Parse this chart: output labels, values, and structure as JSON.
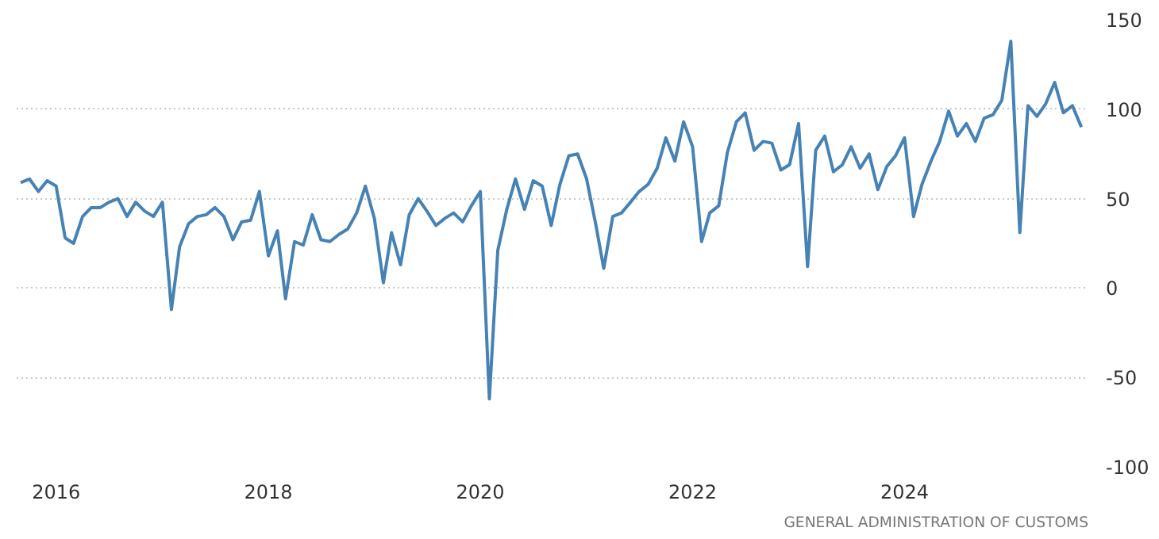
{
  "chart_data": {
    "type": "line",
    "x": [
      "2015-09",
      "2015-10",
      "2015-11",
      "2015-12",
      "2016-01",
      "2016-02",
      "2016-03",
      "2016-04",
      "2016-05",
      "2016-06",
      "2016-07",
      "2016-08",
      "2016-09",
      "2016-10",
      "2016-11",
      "2016-12",
      "2017-01",
      "2017-02",
      "2017-03",
      "2017-04",
      "2017-05",
      "2017-06",
      "2017-07",
      "2017-08",
      "2017-09",
      "2017-10",
      "2017-11",
      "2017-12",
      "2018-01",
      "2018-02",
      "2018-03",
      "2018-04",
      "2018-05",
      "2018-06",
      "2018-07",
      "2018-08",
      "2018-09",
      "2018-10",
      "2018-11",
      "2018-12",
      "2019-01",
      "2019-02",
      "2019-03",
      "2019-04",
      "2019-05",
      "2019-06",
      "2019-07",
      "2019-08",
      "2019-09",
      "2019-10",
      "2019-11",
      "2019-12",
      "2020-01",
      "2020-02",
      "2020-03",
      "2020-04",
      "2020-05",
      "2020-06",
      "2020-07",
      "2020-08",
      "2020-09",
      "2020-10",
      "2020-11",
      "2020-12",
      "2021-01",
      "2021-02",
      "2021-03",
      "2021-04",
      "2021-05",
      "2021-06",
      "2021-07",
      "2021-08",
      "2021-09",
      "2021-10",
      "2021-11",
      "2021-12",
      "2022-01",
      "2022-02",
      "2022-03",
      "2022-04",
      "2022-05",
      "2022-06",
      "2022-07",
      "2022-08",
      "2022-09",
      "2022-10",
      "2022-11",
      "2022-12",
      "2023-01",
      "2023-02",
      "2023-03",
      "2023-04",
      "2023-05",
      "2023-06",
      "2023-07",
      "2023-08",
      "2023-09",
      "2023-10",
      "2023-11",
      "2023-12",
      "2024-01",
      "2024-02",
      "2024-03",
      "2024-04",
      "2024-05",
      "2024-06",
      "2024-07",
      "2024-08",
      "2024-09",
      "2024-10",
      "2024-11",
      "2024-12",
      "2025-01",
      "2025-02",
      "2025-03",
      "2025-04",
      "2025-05",
      "2025-06",
      "2025-07",
      "2025-08",
      "2025-09"
    ],
    "series": [
      {
        "color": "#4682b4",
        "values": [
          59,
          61,
          54,
          60,
          57,
          28,
          25,
          40,
          45,
          45,
          48,
          50,
          40,
          48,
          43,
          40,
          48,
          -12,
          23,
          36,
          40,
          41,
          45,
          40,
          27,
          37,
          38,
          54,
          18,
          32,
          -6,
          26,
          24,
          41,
          27,
          26,
          30,
          33,
          42,
          57,
          39,
          3,
          31,
          13,
          41,
          50,
          43,
          35,
          39,
          42,
          37,
          46,
          54,
          -62,
          21,
          44,
          61,
          44,
          60,
          57,
          35,
          58,
          74,
          75,
          61,
          36,
          11,
          40,
          42,
          48,
          54,
          58,
          67,
          84,
          71,
          93,
          79,
          26,
          42,
          46,
          76,
          93,
          98,
          77,
          82,
          81,
          66,
          69,
          92,
          12,
          77,
          85,
          65,
          69,
          79,
          67,
          75,
          55,
          68,
          74,
          84,
          40,
          58,
          71,
          82,
          99,
          85,
          92,
          82,
          95,
          97,
          105,
          138,
          31,
          102,
          96,
          103,
          115,
          98,
          102,
          90
        ]
      }
    ],
    "xlim": [
      "2015-08-18",
      "2025-09-25"
    ],
    "xticks": [
      "2016",
      "2018",
      "2020",
      "2022",
      "2024"
    ],
    "ylim": [
      -100,
      150
    ],
    "yticks": [
      -100,
      -50,
      0,
      50,
      100,
      150
    ],
    "grid": true,
    "line_style": "solid",
    "annotations": [
      "GENERAL ADMINISTRATION OF CUSTOMS"
    ]
  }
}
